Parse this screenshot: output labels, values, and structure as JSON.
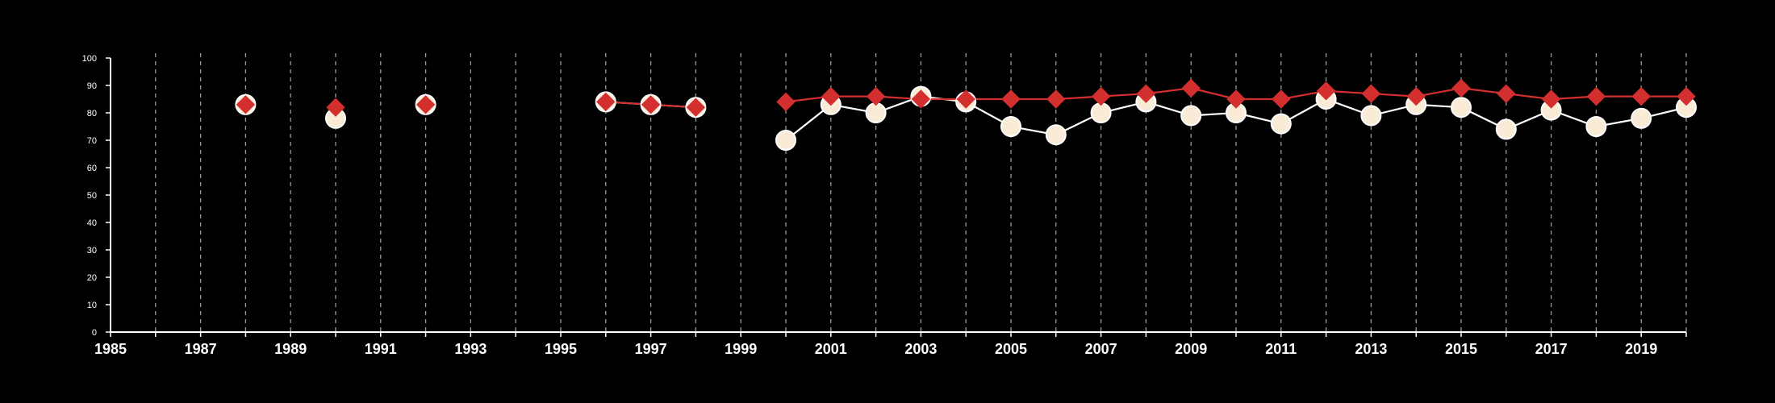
{
  "chart_data": {
    "type": "line",
    "title": "",
    "xlabel": "",
    "ylabel": "",
    "xlim": [
      1985,
      2020
    ],
    "ylim": [
      0,
      100
    ],
    "x_ticks": [
      1985,
      1987,
      1989,
      1991,
      1993,
      1995,
      1997,
      1999,
      2001,
      2003,
      2005,
      2007,
      2009,
      2011,
      2013,
      2015,
      2017,
      2019
    ],
    "y_ticks": [
      0,
      10,
      20,
      30,
      40,
      50,
      60,
      70,
      80,
      90,
      100
    ],
    "grid": "vertical dashed lines at every year",
    "legend": "none",
    "background": "#000000",
    "series": [
      {
        "marker": "circle",
        "color": "#faebd7",
        "line_color": "#ffffff",
        "points": [
          {
            "x": 1988,
            "y": 83
          },
          {
            "x": 1990,
            "y": 78
          },
          {
            "x": 1992,
            "y": 83
          },
          {
            "x": 1996,
            "y": 84
          },
          {
            "x": 1997,
            "y": 83
          },
          {
            "x": 1998,
            "y": 82
          },
          {
            "x": 2000,
            "y": 70
          },
          {
            "x": 2001,
            "y": 83
          },
          {
            "x": 2002,
            "y": 80
          },
          {
            "x": 2003,
            "y": 86
          },
          {
            "x": 2004,
            "y": 84
          },
          {
            "x": 2005,
            "y": 75
          },
          {
            "x": 2006,
            "y": 72
          },
          {
            "x": 2007,
            "y": 80
          },
          {
            "x": 2008,
            "y": 84
          },
          {
            "x": 2009,
            "y": 79
          },
          {
            "x": 2010,
            "y": 80
          },
          {
            "x": 2011,
            "y": 76
          },
          {
            "x": 2012,
            "y": 85
          },
          {
            "x": 2013,
            "y": 79
          },
          {
            "x": 2014,
            "y": 83
          },
          {
            "x": 2015,
            "y": 82
          },
          {
            "x": 2016,
            "y": 74
          },
          {
            "x": 2017,
            "y": 81
          },
          {
            "x": 2018,
            "y": 75
          },
          {
            "x": 2019,
            "y": 78
          },
          {
            "x": 2020,
            "y": 82
          }
        ]
      },
      {
        "marker": "diamond",
        "color": "#d32f2f",
        "line_color": "#d32f2f",
        "points": [
          {
            "x": 1988,
            "y": 83
          },
          {
            "x": 1990,
            "y": 82
          },
          {
            "x": 1992,
            "y": 83
          },
          {
            "x": 1996,
            "y": 84
          },
          {
            "x": 1997,
            "y": 83
          },
          {
            "x": 1998,
            "y": 82
          },
          {
            "x": 2000,
            "y": 84
          },
          {
            "x": 2001,
            "y": 86
          },
          {
            "x": 2002,
            "y": 86
          },
          {
            "x": 2003,
            "y": 85
          },
          {
            "x": 2004,
            "y": 85
          },
          {
            "x": 2005,
            "y": 85
          },
          {
            "x": 2006,
            "y": 85
          },
          {
            "x": 2007,
            "y": 86
          },
          {
            "x": 2008,
            "y": 87
          },
          {
            "x": 2009,
            "y": 89
          },
          {
            "x": 2010,
            "y": 85
          },
          {
            "x": 2011,
            "y": 85
          },
          {
            "x": 2012,
            "y": 88
          },
          {
            "x": 2013,
            "y": 87
          },
          {
            "x": 2014,
            "y": 86
          },
          {
            "x": 2015,
            "y": 89
          },
          {
            "x": 2016,
            "y": 87
          },
          {
            "x": 2017,
            "y": 85
          },
          {
            "x": 2018,
            "y": 86
          },
          {
            "x": 2019,
            "y": 86
          },
          {
            "x": 2020,
            "y": 86
          }
        ]
      }
    ]
  }
}
